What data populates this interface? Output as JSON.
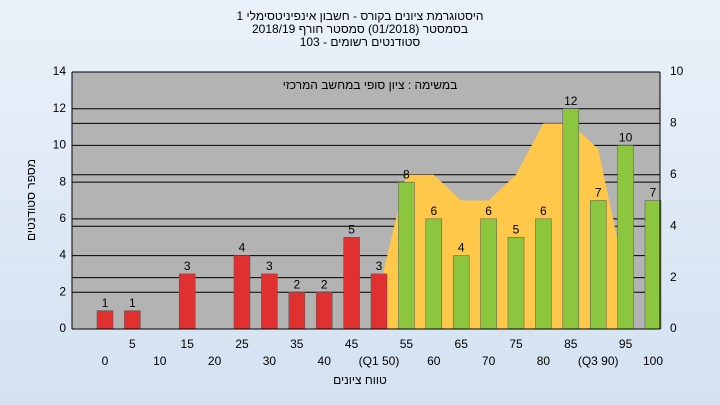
{
  "chart_data": {
    "type": "bar",
    "title": "היסטוגרמת ציונים בקורס - חשבון אינפיניטסימלי 1",
    "subtitle": "בסמסטר (01/2018) סמסטר חורף 2018/19",
    "subtitle2": "סטודנטים רשומים - 103",
    "annotation": "במשימה : ציון סופי במחשב המרכזי",
    "y_label": "מספר סטודנטים",
    "x_label": "טווח ציונים",
    "categories": [
      "0",
      "5",
      "10",
      "15",
      "20",
      "25",
      "30",
      "35",
      "40",
      "45",
      "(Q1 50)",
      "55",
      "60",
      "65",
      "70",
      "75",
      "80",
      "85",
      "(Q3 90)",
      "95",
      "100"
    ],
    "series": [
      {
        "color": "#e03030",
        "values": [
          1,
          1,
          null,
          3,
          null,
          4,
          3,
          2,
          2,
          5,
          3,
          null,
          null,
          null,
          null,
          null,
          null,
          null,
          null,
          null,
          null
        ]
      },
      {
        "color": "#8cc63f",
        "values": [
          null,
          null,
          null,
          null,
          null,
          null,
          null,
          null,
          null,
          null,
          null,
          8,
          6,
          4,
          6,
          5,
          6,
          12,
          7,
          10,
          7
        ]
      },
      {
        "color": "#ffc84a",
        "axis": "y2",
        "values": [
          null,
          null,
          null,
          null,
          null,
          null,
          null,
          null,
          null,
          null,
          1.5,
          6,
          6,
          5,
          5,
          6,
          8,
          8,
          7,
          2,
          null
        ]
      }
    ],
    "ylim": [
      0,
      14
    ],
    "yticks": [
      0,
      2,
      4,
      6,
      8,
      10,
      12,
      14
    ],
    "y2lim": [
      0,
      10
    ],
    "y2ticks": [
      0,
      2,
      4,
      6,
      8,
      10
    ],
    "grid": true
  }
}
